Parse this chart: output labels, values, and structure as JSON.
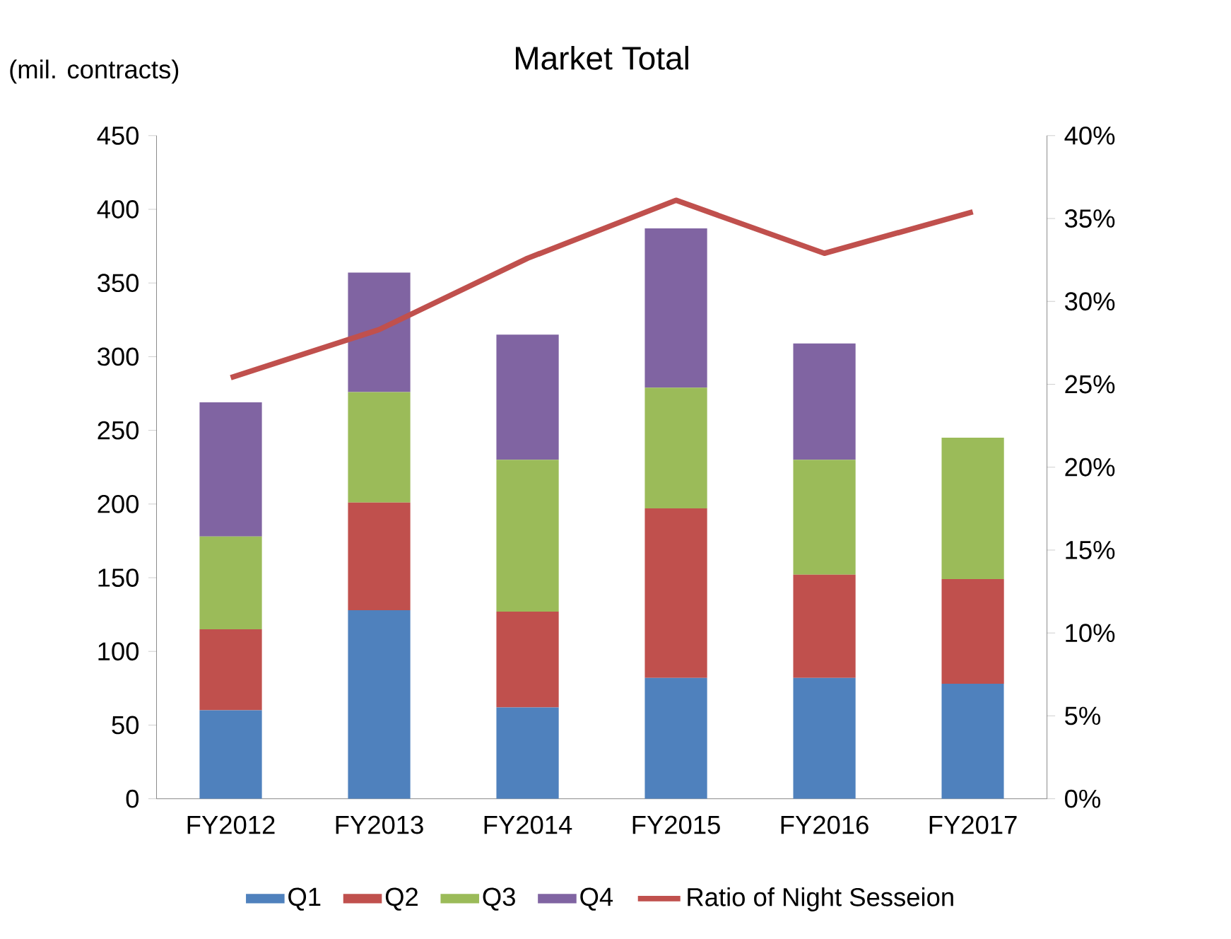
{
  "chart_data": {
    "type": "bar",
    "title": "Market Total",
    "ylabel": "(mil. contracts)",
    "stacked": true,
    "categories": [
      "FY2012",
      "FY2013",
      "FY2014",
      "FY2015",
      "FY2016",
      "FY2017"
    ],
    "series": [
      {
        "name": "Q1",
        "color": "#4f81bd",
        "values": [
          60,
          128,
          62,
          82,
          82,
          78
        ]
      },
      {
        "name": "Q2",
        "color": "#c0504d",
        "values": [
          55,
          73,
          65,
          115,
          70,
          71
        ]
      },
      {
        "name": "Q3",
        "color": "#9bbb59",
        "values": [
          63,
          75,
          103,
          82,
          78,
          96
        ]
      },
      {
        "name": "Q4",
        "color": "#8064a2",
        "values": [
          91,
          81,
          85,
          108,
          79,
          null
        ]
      },
      {
        "name": "Ratio of Night Sesseion",
        "type": "line",
        "axis": "y2",
        "color": "#c0504d",
        "marker": "none",
        "values": [
          25.4,
          28.3,
          32.6,
          36.1,
          32.9,
          35.4
        ]
      }
    ],
    "ylim": [
      0,
      450
    ],
    "yticks": [
      0,
      50,
      100,
      150,
      200,
      250,
      300,
      350,
      400,
      450
    ],
    "y2lim": [
      0,
      40
    ],
    "y2ticks": [
      {
        "value": 0,
        "label": "0%"
      },
      {
        "value": 5,
        "label": "5%"
      },
      {
        "value": 10,
        "label": "10%"
      },
      {
        "value": 15,
        "label": "15%"
      },
      {
        "value": 20,
        "label": "20%"
      },
      {
        "value": 25,
        "label": "25%"
      },
      {
        "value": 30,
        "label": "30%"
      },
      {
        "value": 35,
        "label": "35%"
      },
      {
        "value": 40,
        "label": "40%"
      }
    ],
    "grid": false,
    "legend": "bottom"
  }
}
